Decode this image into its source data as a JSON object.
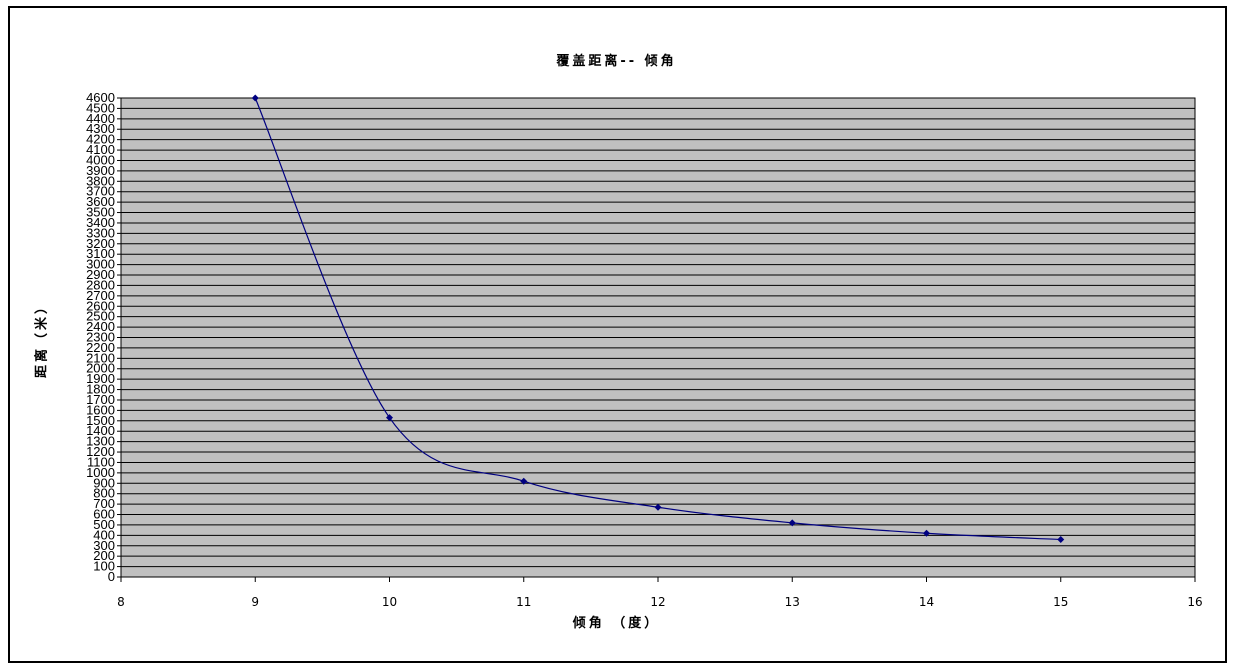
{
  "chart_data": {
    "type": "line",
    "title": "覆盖距离-- 倾角",
    "xlabel": "倾角 （度）",
    "ylabel": "距离（米）",
    "xlim": [
      8,
      16
    ],
    "ylim": [
      0,
      4600
    ],
    "x_ticks": [
      8,
      9,
      10,
      11,
      12,
      13,
      14,
      15,
      16
    ],
    "y_tick_step": 100,
    "grid": true,
    "smooth": true,
    "colors": {
      "line": "#000080",
      "plot_bg": "#c0c0c0",
      "grid": "#000000"
    },
    "series": [
      {
        "x": [
          9,
          10,
          11,
          12,
          13,
          14,
          15
        ],
        "values": [
          4600,
          1530,
          920,
          670,
          520,
          420,
          360
        ]
      }
    ]
  }
}
